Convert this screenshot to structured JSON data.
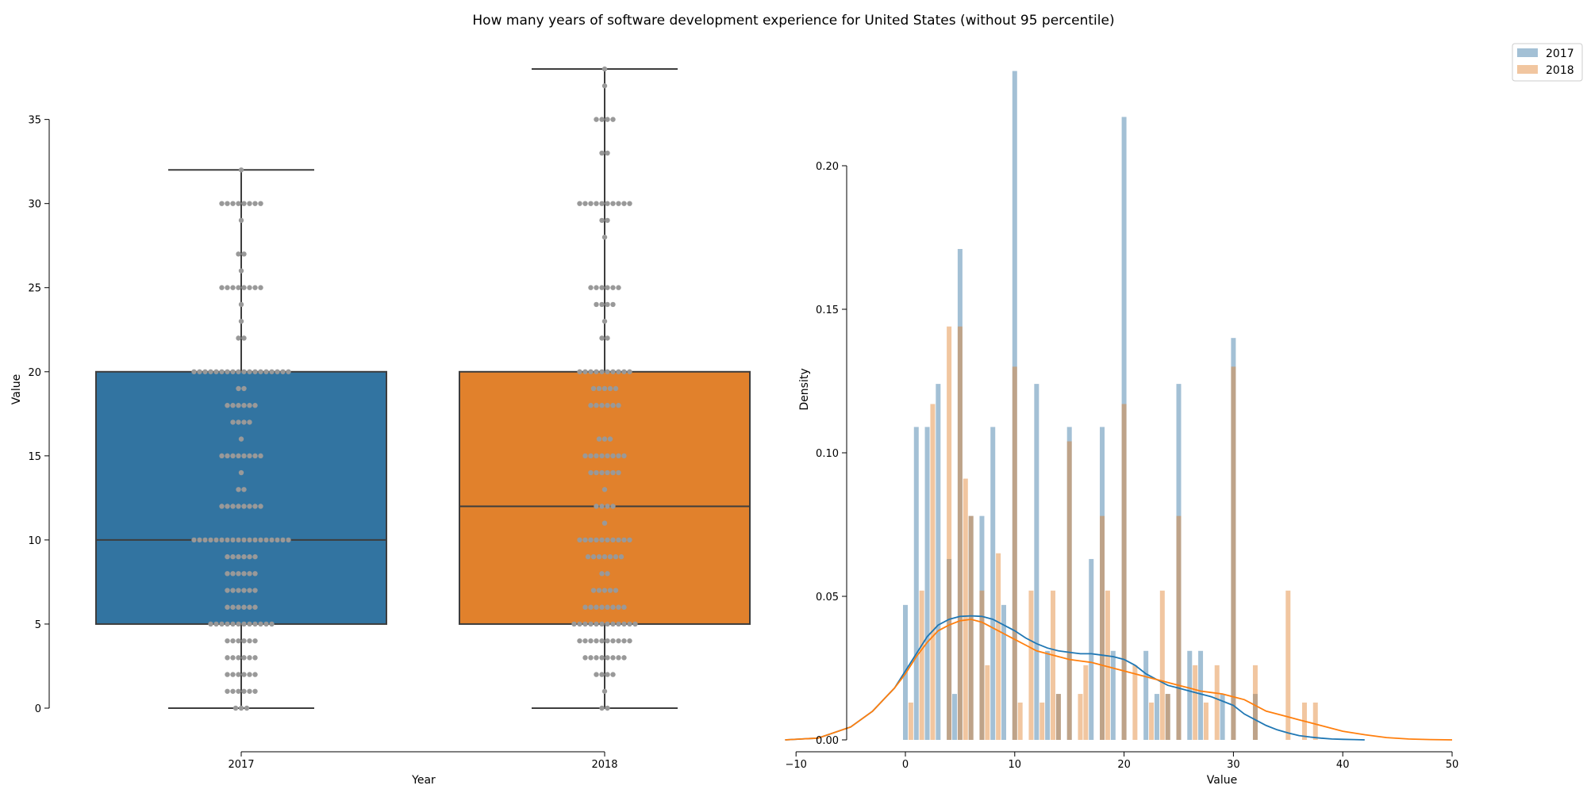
{
  "figure_title": "How many years of software development experience for United States (without 95 percentile)",
  "chart_data": [
    {
      "type": "box",
      "xlabel": "Year",
      "ylabel": "Value",
      "categories": [
        "2017",
        "2018"
      ],
      "ylim": [
        0,
        38
      ],
      "yticks": [
        0,
        5,
        10,
        15,
        20,
        25,
        30,
        35
      ],
      "colors": [
        "#3274a1",
        "#e1812c"
      ],
      "swarm_color": "#999999",
      "boxes": [
        {
          "name": "2017",
          "q1": 5,
          "median": 10,
          "q3": 20,
          "whisker_low": 0,
          "whisker_high": 32
        },
        {
          "name": "2018",
          "q1": 5,
          "median": 12,
          "q3": 20,
          "whisker_low": 0,
          "whisker_high": 38
        }
      ],
      "swarm": [
        {
          "category": "2017",
          "points": [
            [
              0,
              3
            ],
            [
              1,
              6
            ],
            [
              2,
              6
            ],
            [
              3,
              6
            ],
            [
              4,
              6
            ],
            [
              5,
              12
            ],
            [
              6,
              6
            ],
            [
              7,
              6
            ],
            [
              8,
              6
            ],
            [
              9,
              6
            ],
            [
              10,
              18
            ],
            [
              12,
              8
            ],
            [
              13,
              2
            ],
            [
              14,
              1
            ],
            [
              15,
              8
            ],
            [
              16,
              1
            ],
            [
              17,
              4
            ],
            [
              18,
              6
            ],
            [
              19,
              2
            ],
            [
              20,
              18
            ],
            [
              22,
              2
            ],
            [
              23,
              1
            ],
            [
              24,
              1
            ],
            [
              25,
              8
            ],
            [
              26,
              1
            ],
            [
              27,
              2
            ],
            [
              29,
              1
            ],
            [
              30,
              8
            ],
            [
              32,
              1
            ]
          ]
        },
        {
          "category": "2018",
          "points": [
            [
              0,
              2
            ],
            [
              1,
              1
            ],
            [
              2,
              4
            ],
            [
              3,
              8
            ],
            [
              4,
              10
            ],
            [
              5,
              12
            ],
            [
              6,
              8
            ],
            [
              7,
              5
            ],
            [
              8,
              2
            ],
            [
              9,
              7
            ],
            [
              10,
              10
            ],
            [
              11,
              1
            ],
            [
              12,
              4
            ],
            [
              13,
              1
            ],
            [
              14,
              6
            ],
            [
              15,
              8
            ],
            [
              16,
              3
            ],
            [
              18,
              6
            ],
            [
              19,
              5
            ],
            [
              20,
              10
            ],
            [
              22,
              2
            ],
            [
              23,
              1
            ],
            [
              24,
              4
            ],
            [
              25,
              6
            ],
            [
              28,
              1
            ],
            [
              29,
              2
            ],
            [
              30,
              10
            ],
            [
              33,
              2
            ],
            [
              35,
              4
            ],
            [
              37,
              1
            ],
            [
              38,
              1
            ]
          ]
        }
      ]
    },
    {
      "type": "histogram+kde",
      "xlabel": "Value",
      "ylabel": "Density",
      "xlim": [
        -12,
        50
      ],
      "ylim": [
        0,
        0.235
      ],
      "xticks": [
        -10,
        0,
        10,
        20,
        30,
        40,
        50
      ],
      "xtick_labels": [
        "−10",
        "0",
        "10",
        "20",
        "30",
        "40",
        "50"
      ],
      "yticks": [
        0.0,
        0.05,
        0.1,
        0.15,
        0.2
      ],
      "ytick_labels": [
        "0.00",
        "0.05",
        "0.10",
        "0.15",
        "0.20"
      ],
      "legend_position": "top-right",
      "series": [
        {
          "name": "2017",
          "bar_color": "#3274a1",
          "line_color": "#1f77b4",
          "bars": [
            [
              0,
              0.047
            ],
            [
              1,
              0.109
            ],
            [
              2,
              0.109
            ],
            [
              3,
              0.124
            ],
            [
              4,
              0.063
            ],
            [
              4.5,
              0.016
            ],
            [
              5,
              0.171
            ],
            [
              6,
              0.078
            ],
            [
              7,
              0.078
            ],
            [
              8,
              0.109
            ],
            [
              9,
              0.047
            ],
            [
              10,
              0.233
            ],
            [
              12,
              0.124
            ],
            [
              13,
              0.031
            ],
            [
              14,
              0.016
            ],
            [
              15,
              0.109
            ],
            [
              17,
              0.063
            ],
            [
              18,
              0.109
            ],
            [
              19,
              0.031
            ],
            [
              20,
              0.217
            ],
            [
              22,
              0.031
            ],
            [
              23,
              0.016
            ],
            [
              24,
              0.016
            ],
            [
              25,
              0.124
            ],
            [
              26,
              0.031
            ],
            [
              27,
              0.031
            ],
            [
              29,
              0.016
            ],
            [
              30,
              0.14
            ],
            [
              32,
              0.016
            ]
          ],
          "kde_x": [
            -11,
            -8,
            -5,
            -3,
            -2,
            -1,
            0,
            1,
            2,
            3,
            4,
            5,
            6,
            7,
            8,
            9,
            10,
            11,
            12,
            13,
            14,
            15,
            16,
            17,
            18,
            19,
            20,
            21,
            22,
            23,
            24,
            25,
            26,
            27,
            28,
            29,
            30,
            31,
            32,
            33,
            34,
            35,
            36,
            37,
            38,
            39,
            40,
            41,
            42
          ],
          "kde_y": [
            0.0,
            0.0006,
            0.0045,
            0.01,
            0.014,
            0.018,
            0.024,
            0.03,
            0.036,
            0.04,
            0.042,
            0.043,
            0.0432,
            0.043,
            0.042,
            0.04,
            0.038,
            0.0355,
            0.0335,
            0.032,
            0.031,
            0.0305,
            0.03,
            0.03,
            0.0295,
            0.029,
            0.028,
            0.026,
            0.023,
            0.021,
            0.019,
            0.018,
            0.017,
            0.016,
            0.015,
            0.0135,
            0.012,
            0.009,
            0.007,
            0.005,
            0.0035,
            0.0024,
            0.0015,
            0.001,
            0.0006,
            0.0003,
            0.0002,
            0.0001,
            0.0
          ]
        },
        {
          "name": "2018",
          "bar_color": "#e1812c",
          "line_color": "#ff7f0e",
          "bars": [
            [
              0.5,
              0.013
            ],
            [
              1.5,
              0.052
            ],
            [
              2.5,
              0.117
            ],
            [
              3.5,
              0.0
            ],
            [
              4,
              0.144
            ],
            [
              5,
              0.144
            ],
            [
              5.5,
              0.091
            ],
            [
              6,
              0.078
            ],
            [
              7,
              0.052
            ],
            [
              7.5,
              0.026
            ],
            [
              8.5,
              0.065
            ],
            [
              10,
              0.13
            ],
            [
              10.5,
              0.013
            ],
            [
              11.5,
              0.052
            ],
            [
              12.5,
              0.013
            ],
            [
              13.5,
              0.052
            ],
            [
              14,
              0.016
            ],
            [
              15,
              0.104
            ],
            [
              16,
              0.016
            ],
            [
              16.5,
              0.026
            ],
            [
              18,
              0.078
            ],
            [
              18.5,
              0.052
            ],
            [
              20,
              0.117
            ],
            [
              21,
              0.026
            ],
            [
              22.5,
              0.013
            ],
            [
              23.5,
              0.052
            ],
            [
              24,
              0.016
            ],
            [
              25,
              0.078
            ],
            [
              26.5,
              0.026
            ],
            [
              27.5,
              0.013
            ],
            [
              28.5,
              0.026
            ],
            [
              30,
              0.13
            ],
            [
              32,
              0.026
            ],
            [
              35,
              0.052
            ],
            [
              36.5,
              0.013
            ],
            [
              37.5,
              0.013
            ]
          ],
          "kde_x": [
            -11,
            -8,
            -5,
            -3,
            -2,
            -1,
            0,
            1,
            2,
            3,
            4,
            5,
            6,
            7,
            8,
            9,
            10,
            11,
            12,
            13,
            14,
            15,
            16,
            17,
            18,
            19,
            20,
            21,
            22,
            23,
            24,
            25,
            26,
            27,
            28,
            29,
            30,
            31,
            32,
            33,
            34,
            35,
            36,
            37,
            38,
            39,
            40,
            42,
            44,
            46,
            48,
            50
          ],
          "kde_y": [
            0.0,
            0.0006,
            0.0045,
            0.01,
            0.014,
            0.018,
            0.023,
            0.029,
            0.034,
            0.038,
            0.04,
            0.0415,
            0.042,
            0.041,
            0.039,
            0.037,
            0.035,
            0.033,
            0.031,
            0.03,
            0.029,
            0.028,
            0.0275,
            0.027,
            0.026,
            0.025,
            0.024,
            0.023,
            0.022,
            0.021,
            0.02,
            0.019,
            0.018,
            0.017,
            0.0165,
            0.016,
            0.015,
            0.014,
            0.012,
            0.01,
            0.009,
            0.008,
            0.007,
            0.006,
            0.005,
            0.004,
            0.003,
            0.0018,
            0.0008,
            0.0003,
            0.0001,
            0.0
          ]
        }
      ]
    }
  ]
}
